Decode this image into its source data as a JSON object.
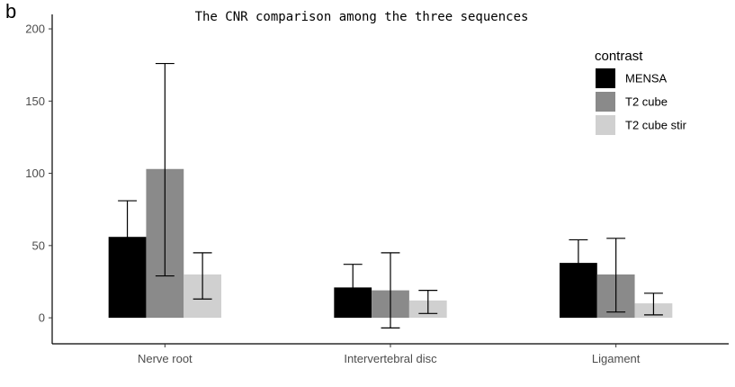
{
  "panel_label": "b",
  "chart_data": {
    "type": "bar",
    "title": "The CNR comparison among the three sequences",
    "xlabel": "",
    "ylabel": "",
    "categories": [
      "Nerve root",
      "Intervertebral disc",
      "Ligament"
    ],
    "ylim": [
      -18,
      210
    ],
    "yticks": [
      0,
      50,
      100,
      150,
      200
    ],
    "legend": {
      "title": "contrast",
      "position": "top-right"
    },
    "grid": false,
    "series": [
      {
        "name": "MENSA",
        "color": "#000000",
        "values": [
          56,
          21,
          38
        ],
        "error_low": [
          30,
          5,
          22
        ],
        "error_high": [
          81,
          37,
          54
        ]
      },
      {
        "name": "T2 cube",
        "color": "#8a8a8a",
        "values": [
          103,
          19,
          30
        ],
        "error_low": [
          29,
          -7,
          4
        ],
        "error_high": [
          176,
          45,
          55
        ]
      },
      {
        "name": "T2 cube stir",
        "color": "#d0d0d0",
        "values": [
          30,
          12,
          10
        ],
        "error_low": [
          13,
          3,
          2
        ],
        "error_high": [
          45,
          19,
          17
        ]
      }
    ]
  }
}
